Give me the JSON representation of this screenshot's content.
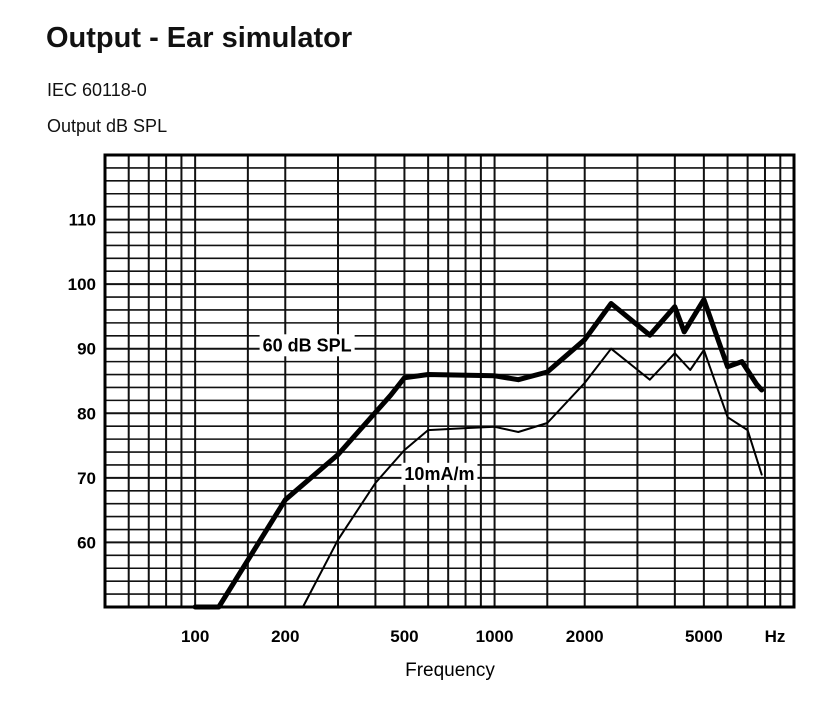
{
  "chart_data": {
    "type": "line",
    "title": "Output - Ear simulator",
    "subtitle": "IEC 60118-0",
    "ylabel": "Output dB SPL",
    "xlabel": "Frequency",
    "x_unit_label": "Hz",
    "xscale": "log",
    "xlim": [
      50,
      10000
    ],
    "ylim": [
      50,
      120
    ],
    "grid": true,
    "xticks": [
      100,
      200,
      500,
      1000,
      2000,
      5000
    ],
    "xtick_labels": [
      "100",
      "200",
      "500",
      "1000",
      "2000",
      "5000"
    ],
    "yticks": [
      60,
      70,
      80,
      90,
      100,
      110
    ],
    "ytick_labels": [
      "60",
      "70",
      "80",
      "90",
      "100",
      "110"
    ],
    "series": [
      {
        "name": "60 dB SPL",
        "style": "thick",
        "x": [
          100,
          120,
          200,
          300,
          450,
          500,
          600,
          1000,
          1200,
          1500,
          2000,
          2450,
          3300,
          4000,
          4300,
          5000,
          6000,
          6700,
          7500,
          7800
        ],
        "y": [
          50,
          50,
          66.6,
          73.6,
          82.8,
          85.5,
          86,
          85.8,
          85.2,
          86.4,
          91.4,
          97,
          92.1,
          96.5,
          92.6,
          97.6,
          87.2,
          88,
          84.5,
          83.6
        ]
      },
      {
        "name": "10mA/m",
        "style": "thin",
        "x": [
          229,
          300,
          400,
          500,
          600,
          800,
          1000,
          1200,
          1500,
          2000,
          2450,
          3300,
          4000,
          4500,
          5000,
          6000,
          7000,
          7800
        ],
        "y": [
          50,
          60.4,
          69.2,
          74.3,
          77.4,
          77.7,
          77.9,
          77.1,
          78.5,
          84.7,
          90,
          85.2,
          89.3,
          86.7,
          89.8,
          79.4,
          77.4,
          70.5
        ]
      }
    ],
    "colors": {
      "line": "#000000",
      "grid": "#111111",
      "background": "#ffffff"
    }
  }
}
